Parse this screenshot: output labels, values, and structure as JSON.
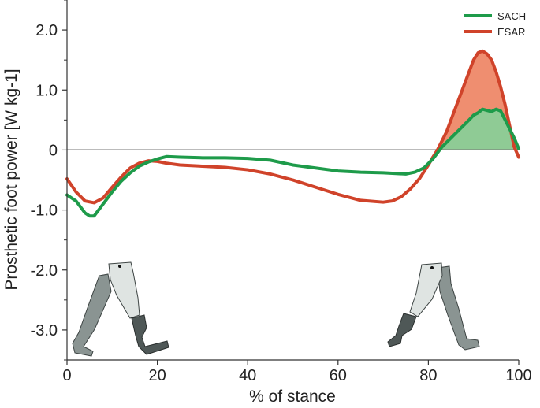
{
  "chart_data": {
    "type": "line",
    "xlabel": "% of stance",
    "ylabel": "Prosthetic foot power [W kg-1]",
    "xlim": [
      0,
      100
    ],
    "ylim": [
      -3.5,
      2.5
    ],
    "x_ticks": [
      0,
      20,
      40,
      60,
      80,
      100
    ],
    "x_tick_labels": [
      "0",
      "20",
      "40",
      "60",
      "80",
      "100"
    ],
    "y_ticks": [
      2.0,
      1.0,
      0,
      -1.0,
      -2.0,
      -3.0
    ],
    "y_tick_labels": [
      "2.0",
      "1.0",
      "0",
      "-1.0",
      "-2.0",
      "-3.0"
    ],
    "y_minor_ticks": [
      2.5,
      1.5,
      0.5,
      -0.5,
      -1.5,
      -2.5,
      -3.5
    ],
    "zero_line": true,
    "legend_position": "top-right",
    "series": [
      {
        "name": "SACH",
        "color": "#1e9b4a",
        "fill_color": "#8fcb95",
        "x": [
          0,
          2,
          4,
          5,
          6,
          8,
          10,
          12,
          14,
          16,
          18,
          20,
          22,
          25,
          30,
          35,
          40,
          45,
          50,
          55,
          60,
          65,
          70,
          75,
          77,
          79,
          81,
          83,
          85,
          87,
          89,
          90,
          91,
          92,
          93,
          94,
          95,
          96,
          97,
          98,
          99,
          100
        ],
        "y": [
          -0.75,
          -0.85,
          -1.05,
          -1.1,
          -1.1,
          -0.9,
          -0.7,
          -0.52,
          -0.38,
          -0.27,
          -0.2,
          -0.15,
          -0.11,
          -0.12,
          -0.13,
          -0.13,
          -0.14,
          -0.17,
          -0.25,
          -0.3,
          -0.35,
          -0.37,
          -0.38,
          -0.4,
          -0.37,
          -0.3,
          -0.15,
          0.05,
          0.2,
          0.35,
          0.5,
          0.58,
          0.62,
          0.68,
          0.66,
          0.64,
          0.68,
          0.65,
          0.5,
          0.35,
          0.2,
          0.02
        ]
      },
      {
        "name": "ESAR",
        "color": "#d0432a",
        "fill_color": "#ef8e70",
        "x": [
          0,
          2,
          4,
          6,
          8,
          10,
          12,
          14,
          16,
          18,
          20,
          22,
          25,
          30,
          35,
          40,
          45,
          50,
          55,
          60,
          65,
          70,
          72,
          74,
          76,
          78,
          80,
          81,
          82,
          84,
          86,
          88,
          90,
          91,
          92,
          93,
          94,
          95,
          96,
          97,
          98,
          99,
          100
        ],
        "y": [
          -0.48,
          -0.7,
          -0.85,
          -0.88,
          -0.8,
          -0.62,
          -0.45,
          -0.3,
          -0.22,
          -0.18,
          -0.19,
          -0.22,
          -0.25,
          -0.27,
          -0.29,
          -0.33,
          -0.4,
          -0.5,
          -0.62,
          -0.74,
          -0.84,
          -0.87,
          -0.85,
          -0.78,
          -0.65,
          -0.48,
          -0.25,
          -0.12,
          0.0,
          0.3,
          0.7,
          1.1,
          1.5,
          1.62,
          1.65,
          1.6,
          1.5,
          1.3,
          1.05,
          0.75,
          0.4,
          0.05,
          -0.12
        ]
      }
    ]
  }
}
